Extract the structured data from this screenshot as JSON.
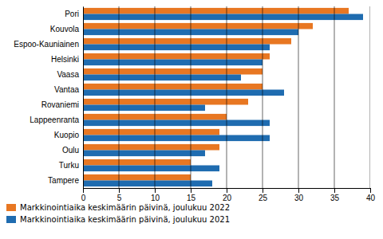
{
  "chart_data": {
    "type": "bar",
    "orientation": "horizontal",
    "categories": [
      "Pori",
      "Kouvola",
      "Espoo-Kauniainen",
      "Helsinki",
      "Vaasa",
      "Vantaa",
      "Rovaniemi",
      "Lappeenranta",
      "Kuopio",
      "Oulu",
      "Turku",
      "Tampere"
    ],
    "series": [
      {
        "name": "Markkinointiaika keskimäärin päivinä, joulukuu 2022",
        "color": "#E87722",
        "values": [
          37,
          32,
          29,
          26,
          25,
          25,
          23,
          20,
          19,
          19,
          15,
          15
        ]
      },
      {
        "name": "Markkinointiaika keskimäärin päivinä, joulukuu 2021",
        "color": "#1F6CB0",
        "values": [
          39,
          30,
          26,
          25,
          22,
          28,
          17,
          26,
          26,
          17,
          19,
          18
        ]
      }
    ],
    "xlim": [
      0,
      40
    ],
    "xticks": [
      0,
      5,
      10,
      15,
      20,
      25,
      30,
      35,
      40
    ],
    "grid": true,
    "legend": "bottom"
  }
}
